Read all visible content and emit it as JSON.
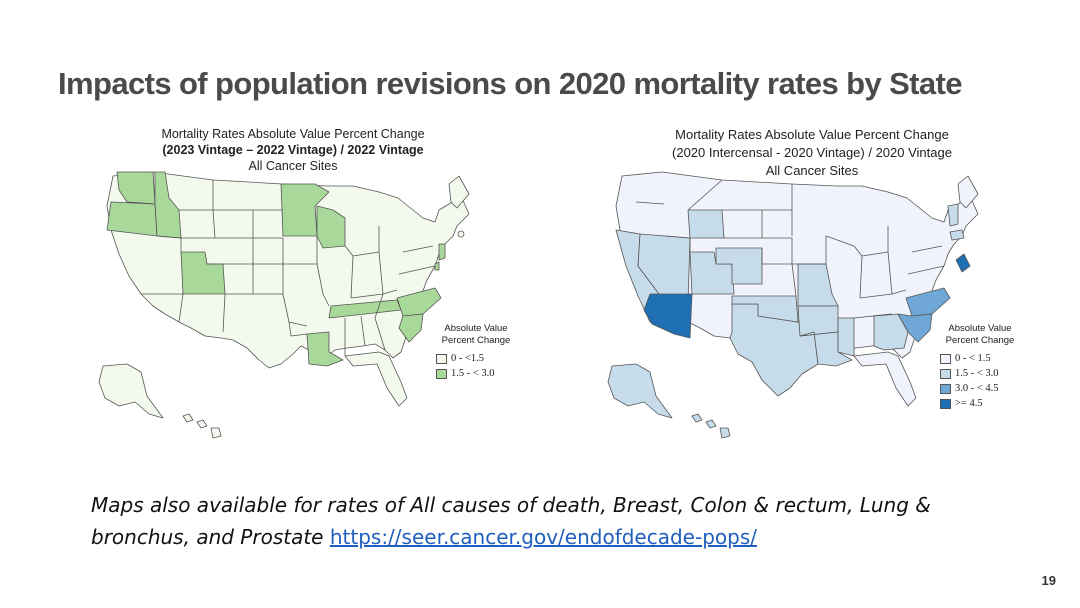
{
  "slide": {
    "title": "Impacts of population revisions on 2020 mortality rates by State",
    "page_number": "19"
  },
  "maps": [
    {
      "header_line1": "Mortality Rates Absolute Value Percent Change",
      "header_line2": "(2023 Vintage – 2022 Vintage) / 2022 Vintage",
      "header_line3": "All Cancer Sites",
      "legend_title_line1": "Absolute Value",
      "legend_title_line2": "Percent Change",
      "legend": [
        {
          "label": "0 - <1.5",
          "color": "#f3f9ec"
        },
        {
          "label": "1.5 - < 3.0",
          "color": "#a9d99a"
        }
      ],
      "highlighted_states": [
        "WA",
        "OR",
        "ID",
        "UT",
        "MN",
        "WI",
        "TN",
        "NC",
        "SC",
        "LA",
        "NJ",
        "DE"
      ]
    },
    {
      "header_line1": "Mortality Rates Absolute Value Percent Change",
      "header_line2": "(2020 Intercensal - 2020 Vintage) / 2020 Vintage",
      "header_line3": "All Cancer Sites",
      "legend_title_line1": "Absolute Value",
      "legend_title_line2": "Percent Change",
      "legend": [
        {
          "label": "0 - < 1.5",
          "color": "#f0f3fb"
        },
        {
          "label": "1.5 - < 3.0",
          "color": "#c7dceb"
        },
        {
          "label": "3.0 - < 4.5",
          "color": "#6fa8d6"
        },
        {
          "label": ">= 4.5",
          "color": "#1f6fb4"
        }
      ],
      "highlighted_states": {
        "1.5 - < 3.0": [
          "CA",
          "NV",
          "WY",
          "UT",
          "CO",
          "TX",
          "OK",
          "LA",
          "MS",
          "GA",
          "AR",
          "MO",
          "AK",
          "HI",
          "NH",
          "CT"
        ],
        "3.0 - < 4.5": [
          "SC",
          "NC"
        ],
        ">= 4.5": [
          "AZ",
          "DC"
        ]
      }
    }
  ],
  "footnote": {
    "text": "Maps also available for rates of All causes of death, Breast, Colon & rectum, Lung & bronchus, and Prostate ",
    "link_text": "https://seer.cancer.gov/endofdecade-pops/"
  }
}
